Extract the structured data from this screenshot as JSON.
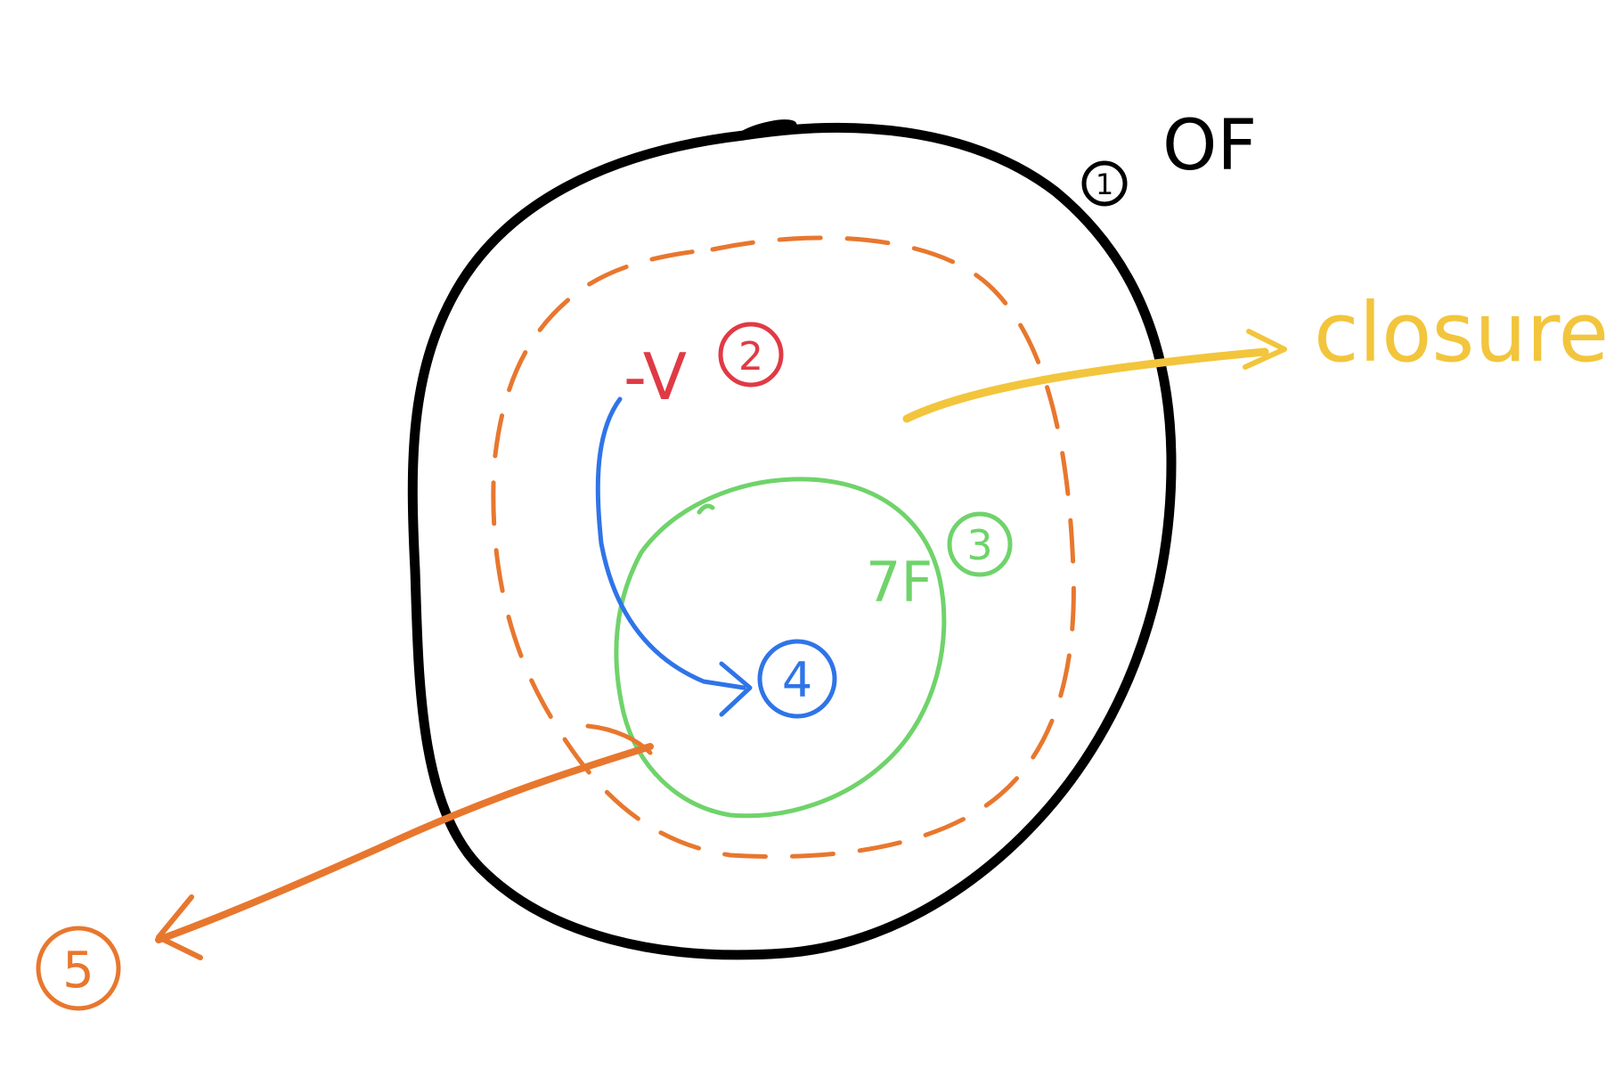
{
  "colors": {
    "black": "#000000",
    "orange": "#e8772e",
    "red": "#e03a45",
    "green": "#6fd36a",
    "blue": "#2f74e8",
    "yellow": "#f2c53c"
  },
  "labels": {
    "outer_number": "1",
    "outer_text": "OF",
    "red_text": "-V",
    "red_number": "2",
    "green_text": "7F",
    "green_number": "3",
    "blue_number": "4",
    "orange_number": "5",
    "closure_text": "closure"
  }
}
